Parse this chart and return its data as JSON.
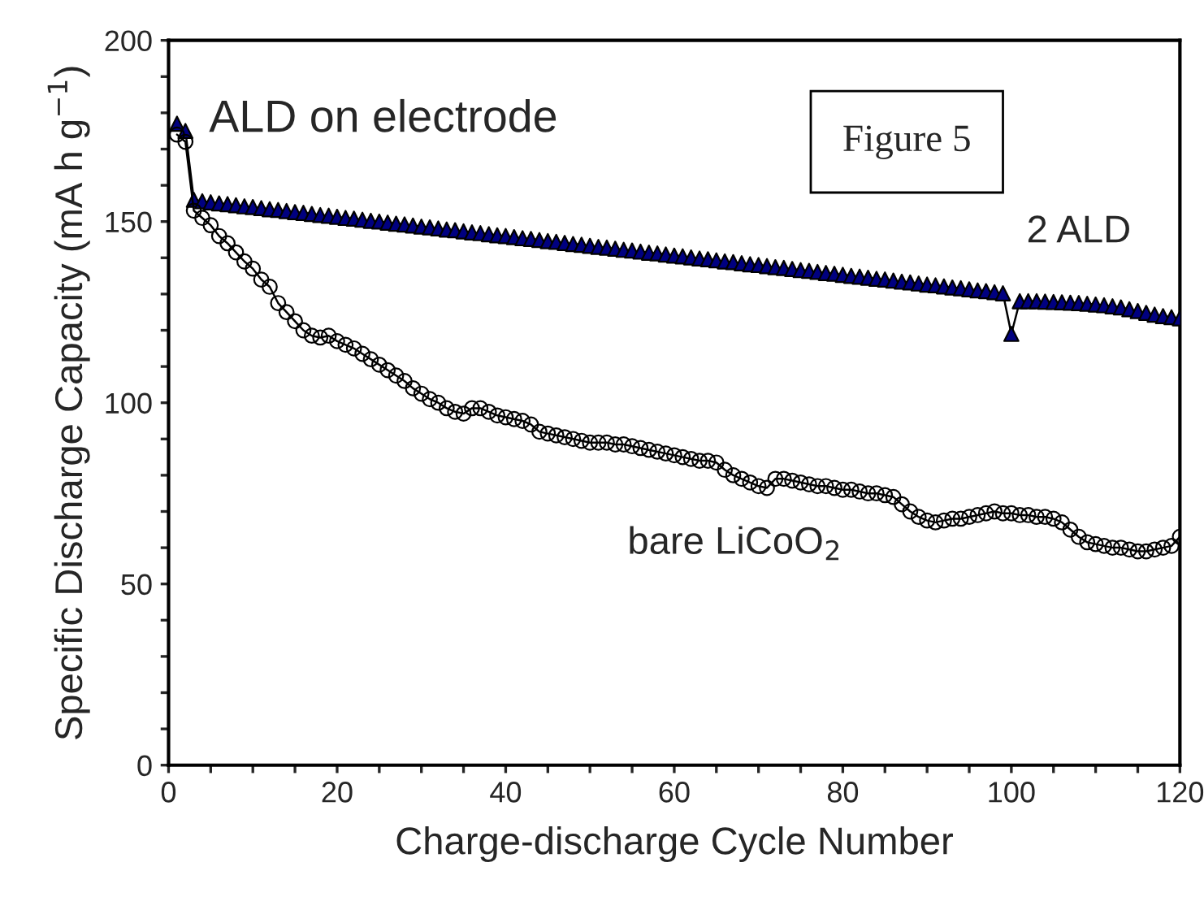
{
  "chart_data": {
    "type": "line",
    "xlabel": "Charge-discharge Cycle Number",
    "ylabel": "Specific Discharge Capacity (mA h g$^{−1}$)",
    "annotations": [
      "ALD on electrode",
      "Figure 5"
    ],
    "x": [
      1,
      2,
      3,
      4,
      5,
      6,
      7,
      8,
      9,
      10,
      11,
      12,
      13,
      14,
      15,
      16,
      17,
      18,
      19,
      20,
      21,
      22,
      23,
      24,
      25,
      26,
      27,
      28,
      29,
      30,
      31,
      32,
      33,
      34,
      35,
      36,
      37,
      38,
      39,
      40,
      41,
      42,
      43,
      44,
      45,
      46,
      47,
      48,
      49,
      50,
      51,
      52,
      53,
      54,
      55,
      56,
      57,
      58,
      59,
      60,
      61,
      62,
      63,
      64,
      65,
      66,
      67,
      68,
      69,
      70,
      71,
      72,
      73,
      74,
      75,
      76,
      77,
      78,
      79,
      80,
      81,
      82,
      83,
      84,
      85,
      86,
      87,
      88,
      89,
      90,
      91,
      92,
      93,
      94,
      95,
      96,
      97,
      98,
      99,
      100,
      101,
      102,
      103,
      104,
      105,
      106,
      107,
      108,
      109,
      110,
      111,
      112,
      113,
      114,
      115,
      116,
      117,
      118,
      119,
      120
    ],
    "series": [
      {
        "name": "2 ALD",
        "color": "#000080",
        "marker": "triangle",
        "values": [
          177,
          175,
          156,
          155.6,
          155.3,
          155,
          154.8,
          154.5,
          154.2,
          154,
          153.7,
          153.4,
          153.2,
          152.9,
          152.6,
          152.4,
          152.1,
          151.8,
          151.6,
          151.3,
          151,
          150.8,
          150.5,
          150.2,
          150,
          149.7,
          149.4,
          149.2,
          148.9,
          148.6,
          148.4,
          148.1,
          147.8,
          147.6,
          147.3,
          147,
          146.8,
          146.5,
          146.2,
          146,
          145.7,
          145.4,
          145.2,
          144.9,
          144.6,
          144.4,
          144.1,
          143.8,
          143.6,
          143.3,
          143,
          142.8,
          142.5,
          142.2,
          142,
          141.7,
          141.4,
          141.2,
          140.9,
          140.6,
          140.4,
          140.1,
          139.8,
          139.6,
          139.3,
          139,
          138.8,
          138.5,
          138.2,
          138,
          137.7,
          137.4,
          137.2,
          136.9,
          136.6,
          136.4,
          136.1,
          135.8,
          135.6,
          135.3,
          135,
          134.8,
          134.5,
          134.2,
          134,
          133.7,
          133.4,
          133.2,
          132.9,
          132.6,
          132.4,
          132.1,
          131.8,
          131.6,
          131.3,
          131,
          130.8,
          130.5,
          130.2,
          119,
          128,
          128,
          128,
          127.9,
          127.8,
          127.7,
          127.6,
          127.5,
          127.3,
          127.1,
          126.9,
          126.6,
          126.3,
          125.8,
          125.3,
          124.8,
          124.3,
          123.9,
          123.6,
          123.3
        ]
      },
      {
        "name": "bare LiCoO$_{2}$",
        "color": "#000000",
        "marker": "circle",
        "values": [
          174,
          172,
          153,
          151,
          149,
          146,
          144,
          141.5,
          139,
          137,
          134,
          132,
          127.5,
          125,
          122.5,
          120,
          118.5,
          118,
          118.5,
          117,
          116,
          115,
          113.5,
          112,
          110.5,
          109,
          107.5,
          106,
          104,
          102.5,
          101,
          100,
          98.5,
          97.5,
          97,
          98.5,
          98.5,
          97.5,
          96.5,
          96,
          95.5,
          95,
          94,
          92,
          91.5,
          91,
          90.5,
          90,
          89.5,
          89,
          89,
          89,
          88.5,
          88.5,
          88,
          87.5,
          87,
          86.5,
          86,
          85.5,
          85,
          84.5,
          84,
          84,
          83.5,
          81.5,
          80,
          79,
          78,
          77,
          76.5,
          79,
          79,
          78.5,
          78,
          77.5,
          77,
          77,
          76.5,
          76,
          76,
          75.5,
          75,
          75,
          74.5,
          74,
          72,
          70,
          68.5,
          67.5,
          67,
          67.5,
          68,
          68,
          68.5,
          69,
          69.5,
          70,
          69.5,
          69.5,
          69,
          69,
          68.5,
          68.5,
          68,
          67,
          65,
          63,
          61.5,
          61,
          60.5,
          60,
          60,
          59.5,
          59,
          59,
          59.5,
          60,
          60.5,
          63
        ]
      }
    ],
    "xlim": [
      0,
      120
    ],
    "xticks": [
      0,
      {
        "value": 5,
        "label": null
      },
      {
        "value": 10,
        "label": null
      },
      {
        "value": 15,
        "label": null
      },
      20,
      {
        "value": 25,
        "label": null
      },
      {
        "value": 30,
        "label": null
      },
      {
        "value": 35,
        "label": null
      },
      40,
      {
        "value": 45,
        "label": null
      },
      {
        "value": 50,
        "label": null
      },
      {
        "value": 55,
        "label": null
      },
      60,
      {
        "value": 65,
        "label": null
      },
      {
        "value": 70,
        "label": null
      },
      {
        "value": 75,
        "label": null
      },
      80,
      {
        "value": 85,
        "label": null
      },
      {
        "value": 90,
        "label": null
      },
      {
        "value": 95,
        "label": null
      },
      100,
      {
        "value": 105,
        "label": null
      },
      {
        "value": 110,
        "label": null
      },
      {
        "value": 115,
        "label": null
      },
      120
    ],
    "ylim": [
      0,
      200
    ],
    "yticks": [
      0,
      {
        "value": 10,
        "label": null
      },
      {
        "value": 20,
        "label": null
      },
      {
        "value": 30,
        "label": null
      },
      {
        "value": 40,
        "label": null
      },
      50,
      {
        "value": 60,
        "label": null
      },
      {
        "value": 70,
        "label": null
      },
      {
        "value": 80,
        "label": null
      },
      {
        "value": 90,
        "label": null
      },
      100,
      {
        "value": 110,
        "label": null
      },
      {
        "value": 120,
        "label": null
      },
      {
        "value": 130,
        "label": null
      },
      {
        "value": 140,
        "label": null
      },
      150,
      {
        "value": 160,
        "label": null
      },
      {
        "value": 170,
        "label": null
      },
      {
        "value": 180,
        "label": null
      },
      {
        "value": 190,
        "label": null
      },
      200
    ],
    "grid": false
  }
}
